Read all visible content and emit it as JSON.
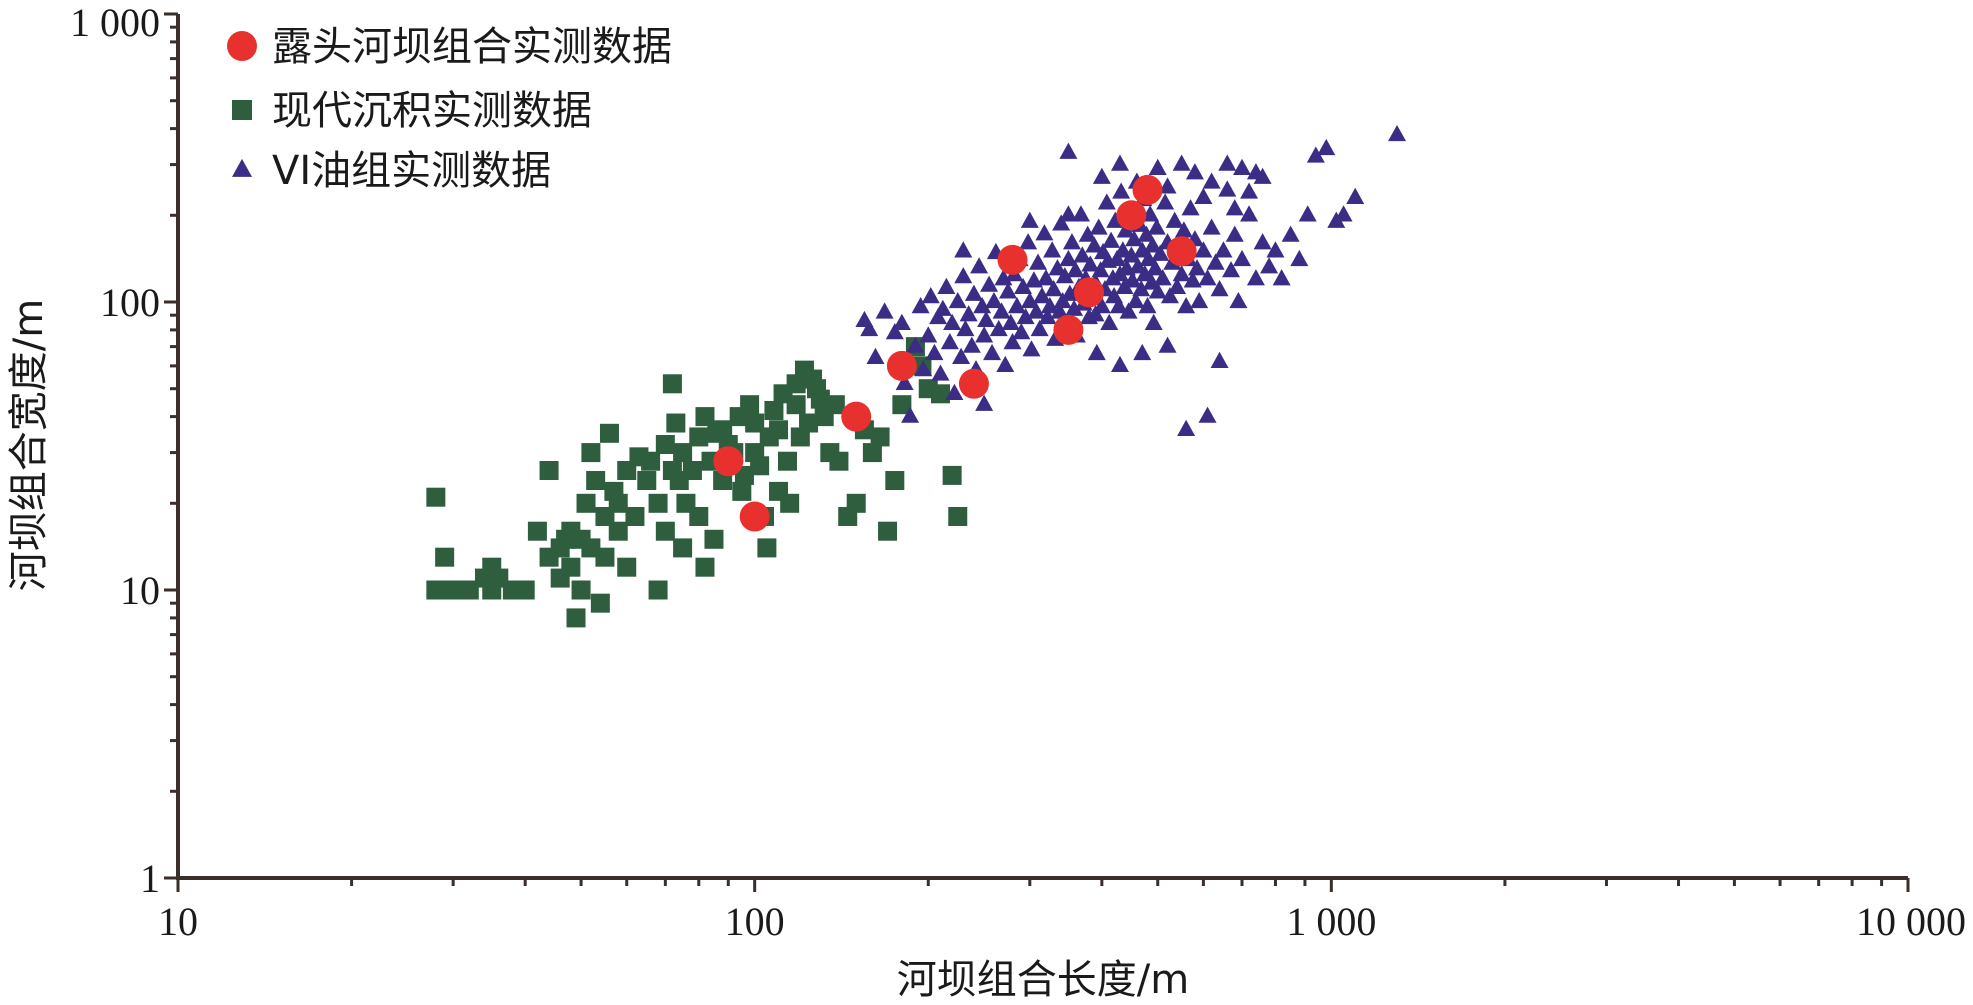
{
  "chart_data": {
    "type": "scatter",
    "x_scale": "log",
    "y_scale": "log",
    "xlim": [
      10,
      10000
    ],
    "ylim": [
      1,
      1000
    ],
    "xlabel": "河坝组合长度/m",
    "ylabel": "河坝组合宽度/m",
    "x_tick_labels": [
      "10",
      "100",
      "1 000",
      "10 000"
    ],
    "y_tick_labels": [
      "1",
      "10",
      "100",
      "1 000"
    ],
    "legend_position": "top-left",
    "grid": false,
    "series": [
      {
        "name": "露头河坝组合实测数据",
        "marker": "circle",
        "color": "#e8312f",
        "points": [
          [
            90,
            28
          ],
          [
            100,
            18
          ],
          [
            150,
            40
          ],
          [
            180,
            60
          ],
          [
            240,
            52
          ],
          [
            280,
            140
          ],
          [
            350,
            80
          ],
          [
            380,
            108
          ],
          [
            450,
            200
          ],
          [
            480,
            245
          ],
          [
            550,
            150
          ]
        ]
      },
      {
        "name": "现代沉积实测数据",
        "marker": "square",
        "color": "#2e5e3e",
        "points": [
          [
            28,
            21
          ],
          [
            28,
            10
          ],
          [
            29,
            13
          ],
          [
            30,
            10
          ],
          [
            32,
            10
          ],
          [
            34,
            11
          ],
          [
            35,
            12
          ],
          [
            35,
            10
          ],
          [
            36,
            11
          ],
          [
            38,
            10
          ],
          [
            40,
            10
          ],
          [
            42,
            16
          ],
          [
            44,
            13
          ],
          [
            44,
            26
          ],
          [
            46,
            14
          ],
          [
            46,
            11
          ],
          [
            47,
            15
          ],
          [
            48,
            12
          ],
          [
            48,
            16
          ],
          [
            49,
            8
          ],
          [
            50,
            15
          ],
          [
            50,
            10
          ],
          [
            51,
            20
          ],
          [
            52,
            14
          ],
          [
            52,
            30
          ],
          [
            53,
            24
          ],
          [
            54,
            9
          ],
          [
            55,
            18
          ],
          [
            55,
            13
          ],
          [
            56,
            35
          ],
          [
            57,
            22
          ],
          [
            58,
            16
          ],
          [
            58,
            20
          ],
          [
            60,
            26
          ],
          [
            60,
            12
          ],
          [
            62,
            18
          ],
          [
            63,
            29
          ],
          [
            65,
            24
          ],
          [
            66,
            28
          ],
          [
            68,
            20
          ],
          [
            68,
            10
          ],
          [
            70,
            32
          ],
          [
            70,
            16
          ],
          [
            72,
            26
          ],
          [
            72,
            52
          ],
          [
            73,
            38
          ],
          [
            74,
            24
          ],
          [
            75,
            30
          ],
          [
            75,
            14
          ],
          [
            76,
            20
          ],
          [
            78,
            26
          ],
          [
            80,
            34
          ],
          [
            80,
            18
          ],
          [
            82,
            40
          ],
          [
            82,
            12
          ],
          [
            84,
            28
          ],
          [
            85,
            15
          ],
          [
            86,
            35
          ],
          [
            88,
            36
          ],
          [
            88,
            24
          ],
          [
            90,
            32
          ],
          [
            92,
            30
          ],
          [
            94,
            40
          ],
          [
            95,
            22
          ],
          [
            96,
            25
          ],
          [
            98,
            44
          ],
          [
            100,
            38
          ],
          [
            100,
            30
          ],
          [
            102,
            27
          ],
          [
            104,
            18
          ],
          [
            105,
            14
          ],
          [
            106,
            34
          ],
          [
            108,
            42
          ],
          [
            110,
            36
          ],
          [
            110,
            22
          ],
          [
            112,
            48
          ],
          [
            114,
            28
          ],
          [
            115,
            20
          ],
          [
            118,
            52
          ],
          [
            118,
            44
          ],
          [
            120,
            34
          ],
          [
            122,
            58
          ],
          [
            124,
            38
          ],
          [
            126,
            54
          ],
          [
            128,
            50
          ],
          [
            130,
            46
          ],
          [
            132,
            40
          ],
          [
            135,
            30
          ],
          [
            138,
            44
          ],
          [
            140,
            28
          ],
          [
            145,
            18
          ],
          [
            150,
            20
          ],
          [
            155,
            36
          ],
          [
            160,
            30
          ],
          [
            165,
            34
          ],
          [
            170,
            16
          ],
          [
            175,
            24
          ],
          [
            180,
            44
          ],
          [
            190,
            70
          ],
          [
            195,
            60
          ],
          [
            200,
            50
          ],
          [
            210,
            48
          ],
          [
            220,
            25
          ],
          [
            225,
            18
          ]
        ]
      },
      {
        "name": "VI油组实测数据",
        "marker": "triangle",
        "color": "#3b2d86",
        "points": [
          [
            155,
            86
          ],
          [
            158,
            80
          ],
          [
            162,
            64
          ],
          [
            168,
            92
          ],
          [
            175,
            78
          ],
          [
            180,
            84
          ],
          [
            182,
            52
          ],
          [
            186,
            40
          ],
          [
            190,
            70
          ],
          [
            194,
            96
          ],
          [
            196,
            58
          ],
          [
            200,
            76
          ],
          [
            202,
            104
          ],
          [
            205,
            66
          ],
          [
            208,
            88
          ],
          [
            210,
            56
          ],
          [
            212,
            94
          ],
          [
            215,
            112
          ],
          [
            218,
            72
          ],
          [
            220,
            84
          ],
          [
            222,
            48
          ],
          [
            225,
            100
          ],
          [
            228,
            64
          ],
          [
            230,
            122
          ],
          [
            232,
            80
          ],
          [
            235,
            90
          ],
          [
            238,
            70
          ],
          [
            240,
            106
          ],
          [
            242,
            58
          ],
          [
            245,
            132
          ],
          [
            248,
            96
          ],
          [
            250,
            76
          ],
          [
            252,
            86
          ],
          [
            255,
            114
          ],
          [
            258,
            66
          ],
          [
            260,
            100
          ],
          [
            262,
            148
          ],
          [
            265,
            80
          ],
          [
            268,
            92
          ],
          [
            270,
            120
          ],
          [
            272,
            60
          ],
          [
            275,
            108
          ],
          [
            278,
            84
          ],
          [
            280,
            72
          ],
          [
            282,
            124
          ],
          [
            285,
            96
          ],
          [
            288,
            140
          ],
          [
            290,
            78
          ],
          [
            292,
            112
          ],
          [
            295,
            88
          ],
          [
            298,
            160
          ],
          [
            300,
            100
          ],
          [
            302,
            68
          ],
          [
            305,
            118
          ],
          [
            308,
            92
          ],
          [
            310,
            136
          ],
          [
            312,
            80
          ],
          [
            315,
            104
          ],
          [
            318,
            172
          ],
          [
            320,
            120
          ],
          [
            322,
            88
          ],
          [
            325,
            96
          ],
          [
            328,
            150
          ],
          [
            330,
            110
          ],
          [
            332,
            74
          ],
          [
            335,
            130
          ],
          [
            338,
            92
          ],
          [
            340,
            186
          ],
          [
            342,
            100
          ],
          [
            345,
            122
          ],
          [
            348,
            84
          ],
          [
            350,
            140
          ],
          [
            352,
            106
          ],
          [
            355,
            160
          ],
          [
            358,
            94
          ],
          [
            360,
            128
          ],
          [
            362,
            76
          ],
          [
            365,
            112
          ],
          [
            368,
            200
          ],
          [
            370,
            144
          ],
          [
            372,
            98
          ],
          [
            375,
            120
          ],
          [
            378,
            170
          ],
          [
            380,
            88
          ],
          [
            382,
            134
          ],
          [
            385,
            104
          ],
          [
            388,
            156
          ],
          [
            390,
            116
          ],
          [
            392,
            66
          ],
          [
            395,
            180
          ],
          [
            398,
            128
          ],
          [
            400,
            96
          ],
          [
            402,
            148
          ],
          [
            405,
            110
          ],
          [
            408,
            220
          ],
          [
            410,
            138
          ],
          [
            412,
            84
          ],
          [
            415,
            162
          ],
          [
            418,
            120
          ],
          [
            420,
            104
          ],
          [
            422,
            190
          ],
          [
            425,
            140
          ],
          [
            428,
            96
          ],
          [
            430,
            124
          ],
          [
            432,
            240
          ],
          [
            435,
            150
          ],
          [
            438,
            112
          ],
          [
            440,
            176
          ],
          [
            442,
            130
          ],
          [
            445,
            92
          ],
          [
            448,
            206
          ],
          [
            450,
            144
          ],
          [
            452,
            118
          ],
          [
            455,
            164
          ],
          [
            458,
            100
          ],
          [
            460,
            260
          ],
          [
            462,
            132
          ],
          [
            465,
            184
          ],
          [
            468,
            110
          ],
          [
            470,
            150
          ],
          [
            472,
            226
          ],
          [
            475,
            124
          ],
          [
            478,
            170
          ],
          [
            480,
            96
          ],
          [
            482,
            140
          ],
          [
            485,
            200
          ],
          [
            488,
            116
          ],
          [
            490,
            156
          ],
          [
            492,
            84
          ],
          [
            495,
            130
          ],
          [
            498,
            180
          ],
          [
            500,
            108
          ],
          [
            505,
            146
          ],
          [
            510,
            120
          ],
          [
            515,
            220
          ],
          [
            520,
            160
          ],
          [
            525,
            104
          ],
          [
            530,
            136
          ],
          [
            535,
            190
          ],
          [
            540,
            112
          ],
          [
            545,
            150
          ],
          [
            550,
            124
          ],
          [
            555,
            176
          ],
          [
            560,
            96
          ],
          [
            565,
            140
          ],
          [
            570,
            210
          ],
          [
            575,
            118
          ],
          [
            580,
            164
          ],
          [
            585,
            130
          ],
          [
            590,
            100
          ],
          [
            600,
            150
          ],
          [
            610,
            120
          ],
          [
            620,
            180
          ],
          [
            630,
            136
          ],
          [
            640,
            110
          ],
          [
            650,
            150
          ],
          [
            660,
            244
          ],
          [
            670,
            128
          ],
          [
            680,
            170
          ],
          [
            690,
            100
          ],
          [
            700,
            140
          ],
          [
            720,
            200
          ],
          [
            740,
            120
          ],
          [
            760,
            160
          ],
          [
            780,
            132
          ],
          [
            800,
            150
          ],
          [
            820,
            120
          ],
          [
            850,
            170
          ],
          [
            880,
            140
          ],
          [
            910,
            200
          ],
          [
            940,
            320
          ],
          [
            980,
            340
          ],
          [
            1020,
            190
          ],
          [
            1050,
            200
          ],
          [
            1100,
            230
          ],
          [
            1300,
            380
          ],
          [
            560,
            36
          ],
          [
            610,
            40
          ],
          [
            640,
            62
          ],
          [
            520,
            70
          ],
          [
            470,
            66
          ],
          [
            430,
            60
          ],
          [
            390,
            90
          ],
          [
            250,
            44
          ],
          [
            230,
            150
          ],
          [
            350,
            200
          ],
          [
            400,
            270
          ],
          [
            500,
            290
          ],
          [
            580,
            280
          ],
          [
            550,
            300
          ],
          [
            620,
            260
          ],
          [
            660,
            300
          ],
          [
            700,
            290
          ],
          [
            740,
            280
          ],
          [
            760,
            270
          ],
          [
            300,
            190
          ],
          [
            350,
            330
          ],
          [
            430,
            300
          ],
          [
            520,
            250
          ],
          [
            600,
            230
          ],
          [
            680,
            210
          ],
          [
            720,
            240
          ]
        ]
      }
    ]
  }
}
